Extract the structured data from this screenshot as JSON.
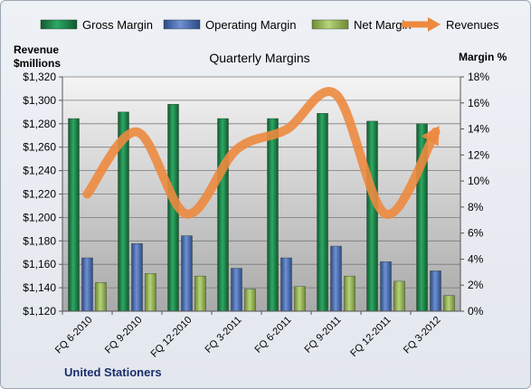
{
  "chart_data": {
    "type": "bar",
    "title": "Quarterly Margins",
    "company": "United Stationers",
    "left_axis_title": "Revenue $millions",
    "left_axis_title_lines": [
      "Revenue",
      "$millions"
    ],
    "right_axis_title": "Margin %",
    "categories": [
      "FQ 6-2010",
      "FQ 9-2010",
      "FQ 12-2010",
      "FQ 3-2011",
      "FQ 6-2011",
      "FQ 9-2011",
      "FQ 12-2011",
      "FQ 3-2012"
    ],
    "left_ylim": [
      1120,
      1320
    ],
    "left_ticks": [
      "$1,120",
      "$1,140",
      "$1,160",
      "$1,180",
      "$1,200",
      "$1,220",
      "$1,240",
      "$1,260",
      "$1,280",
      "$1,300",
      "$1,320"
    ],
    "right_ylim": [
      0,
      18
    ],
    "right_ticks": [
      "0%",
      "2%",
      "4%",
      "6%",
      "8%",
      "10%",
      "12%",
      "14%",
      "16%",
      "18%"
    ],
    "series": [
      {
        "name": "Gross Margin",
        "axis": "right",
        "kind": "bar",
        "color": "#1f8a4c",
        "values": [
          14.8,
          15.3,
          15.9,
          14.8,
          14.8,
          15.2,
          14.6,
          14.4
        ]
      },
      {
        "name": "Operating Margin",
        "axis": "right",
        "kind": "bar",
        "color": "#4a6fb5",
        "values": [
          4.1,
          5.2,
          5.8,
          3.3,
          4.1,
          5.0,
          3.8,
          3.1
        ]
      },
      {
        "name": "Net Margin",
        "axis": "right",
        "kind": "bar",
        "color": "#9bbb59",
        "values": [
          2.2,
          2.9,
          2.7,
          1.7,
          1.9,
          2.7,
          2.3,
          1.2
        ]
      },
      {
        "name": "Revenues",
        "axis": "left",
        "kind": "line",
        "color": "#ed8a3f",
        "values": [
          1220,
          1273,
          1203,
          1258,
          1275,
          1305,
          1203,
          1273
        ]
      }
    ],
    "legend": [
      "Gross Margin",
      "Operating Margin",
      "Net Margin",
      "Revenues"
    ],
    "legend_position": "top",
    "grid": true
  }
}
